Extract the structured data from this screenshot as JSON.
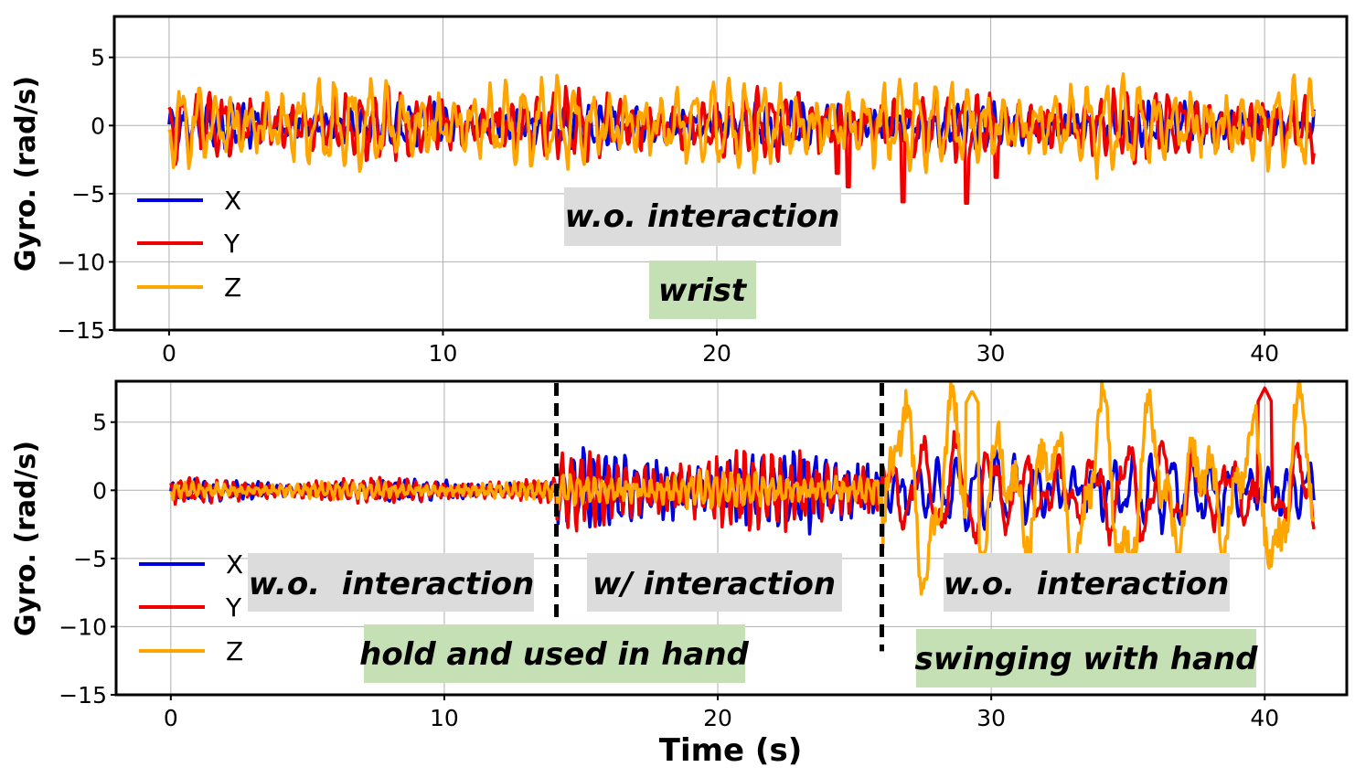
{
  "chart_data": [
    {
      "type": "line",
      "panel": "top",
      "ylabel": "Gyro. (rad/s)",
      "xlabel": "",
      "xlim": [
        -2,
        43
      ],
      "ylim": [
        -15,
        8
      ],
      "xticks": [
        0,
        10,
        20,
        30,
        40
      ],
      "xtick_labels": [
        "0",
        "10",
        "20",
        "30",
        "40"
      ],
      "yticks": [
        5,
        0,
        -5,
        -10,
        -15
      ],
      "ytick_labels": [
        "5",
        "0",
        "−5",
        "−10",
        "−15"
      ],
      "grid": true,
      "legend_position": "lower-left",
      "series": [
        {
          "name": "X",
          "color": "#0000dd",
          "amplitude": 1.3,
          "offset": 0,
          "frequency": 2.3,
          "values_description": "oscillating roughly between -1.5 and 1.5 rad/s over 0-42 s"
        },
        {
          "name": "Y",
          "color": "#ee0000",
          "amplitude": 2.0,
          "offset": 0,
          "frequency": 2.0,
          "spikes": [
            {
              "x": 24.4,
              "y": -3.5
            },
            {
              "x": 24.8,
              "y": -4.5
            },
            {
              "x": 26.8,
              "y": -5.6
            },
            {
              "x": 29.1,
              "y": -5.7
            },
            {
              "x": 30.2,
              "y": -3.8
            }
          ],
          "values_description": "oscillating roughly between -3 and 3 rad/s with negative spikes"
        },
        {
          "name": "Z",
          "color": "#ffa500",
          "amplitude": 2.6,
          "offset": 0,
          "frequency": 1.6,
          "values_description": "oscillating roughly between -3 and 3.5 rad/s"
        }
      ],
      "annotations": [
        {
          "text": "w.o. interaction",
          "style": "gray-box"
        },
        {
          "text": "wrist",
          "style": "green-box"
        }
      ]
    },
    {
      "type": "line",
      "panel": "bottom",
      "ylabel": "Gyro. (rad/s)",
      "xlabel": "Time (s)",
      "xlim": [
        -2,
        43
      ],
      "ylim": [
        -15,
        8
      ],
      "xticks": [
        0,
        10,
        20,
        30,
        40
      ],
      "xtick_labels": [
        "0",
        "10",
        "20",
        "30",
        "40"
      ],
      "yticks": [
        5,
        0,
        -5,
        -10,
        -15
      ],
      "ytick_labels": [
        "5",
        "0",
        "−5",
        "−10",
        "−15"
      ],
      "grid": true,
      "legend_position": "lower-left",
      "vlines": [
        14.1,
        26.0
      ],
      "segments": [
        {
          "start": 0,
          "end": 14.1,
          "label": "w.o.  interaction",
          "context": "hold and used in hand",
          "amplitudes": {
            "X": 0.6,
            "Y": 0.7,
            "Z": 0.5
          }
        },
        {
          "start": 14.1,
          "end": 26.0,
          "label": "w/ interaction",
          "context": "hold and used in hand",
          "amplitudes": {
            "X": 2.2,
            "Y": 2.3,
            "Z": 1.1
          }
        },
        {
          "start": 26.0,
          "end": 41.8,
          "label": "w.o.  interaction",
          "context": "swinging with hand",
          "amplitudes": {
            "X": 2.2,
            "Y": 3.0,
            "Z": 6.0
          }
        }
      ],
      "series": [
        {
          "name": "X",
          "color": "#0000dd"
        },
        {
          "name": "Y",
          "color": "#ee0000",
          "peak": {
            "x": 40.0,
            "y": 7.5
          }
        },
        {
          "name": "Z",
          "color": "#ffa500",
          "peak": {
            "x": 29.3,
            "y": 7.3
          }
        }
      ],
      "annotations": [
        {
          "text": "w.o.  interaction",
          "style": "gray-box"
        },
        {
          "text": "w/ interaction",
          "style": "gray-box"
        },
        {
          "text": "w.o.  interaction",
          "style": "gray-box"
        },
        {
          "text": "hold and used in hand",
          "style": "green-box"
        },
        {
          "text": "swinging with hand",
          "style": "green-box"
        }
      ]
    }
  ],
  "colors": {
    "gray_box": "#dcdcdc",
    "green_box": "#c5e0b4",
    "x_series": "#0000dd",
    "y_series": "#ee0000",
    "z_series": "#ffa500"
  },
  "labels": {
    "top_ylabel": "Gyro. (rad/s)",
    "bottom_ylabel": "Gyro. (rad/s)",
    "xlabel": "Time (s)",
    "top_ann_gray": "w.o. interaction",
    "top_ann_green": "wrist",
    "bot_ann_gray_1": "w.o.  interaction",
    "bot_ann_gray_2": "w/ interaction",
    "bot_ann_gray_3": "w.o.  interaction",
    "bot_ann_green_1": "hold and used in hand",
    "bot_ann_green_2": "swinging with hand",
    "legend": [
      "X",
      "Y",
      "Z"
    ]
  }
}
